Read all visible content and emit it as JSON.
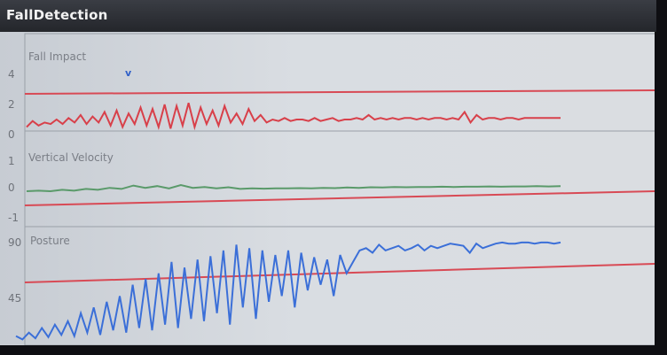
{
  "app": {
    "title": "FallDetection"
  },
  "colors": {
    "impact": "#d8404a",
    "velocity": "#5a9a6a",
    "posture": "#3b6fd8",
    "threshold": "#d84a55"
  },
  "panels": [
    {
      "key": "impact",
      "label": "Fall Impact",
      "ticks": [
        "4",
        "2",
        "0"
      ],
      "marker": "v"
    },
    {
      "key": "velocity",
      "label": "Vertical Velocity",
      "ticks": [
        "1",
        "0",
        "-1"
      ]
    },
    {
      "key": "posture",
      "label": "Posture",
      "ticks": [
        "90",
        "45"
      ]
    }
  ],
  "chart_data": [
    {
      "type": "line",
      "title": "Fall Impact",
      "ylim": [
        0,
        4
      ],
      "threshold": 2.4,
      "series": [
        {
          "name": "Fall Impact",
          "values": [
            0.5,
            0.9,
            0.6,
            0.8,
            0.7,
            1.0,
            0.7,
            1.1,
            0.8,
            1.3,
            0.7,
            1.2,
            0.8,
            1.5,
            0.6,
            1.6,
            0.5,
            1.4,
            0.7,
            1.8,
            0.6,
            1.7,
            0.5,
            2.0,
            0.4,
            1.9,
            0.6,
            2.1,
            0.5,
            1.8,
            0.7,
            1.6,
            0.6,
            1.9,
            0.8,
            1.4,
            0.7,
            1.7,
            0.9,
            1.3,
            0.8,
            1.0,
            0.9,
            1.1,
            0.9,
            1.0,
            1.0,
            0.9,
            1.1,
            0.9,
            1.0,
            1.1,
            0.9,
            1.0,
            1.0,
            1.1,
            1.0,
            1.3,
            1.0,
            1.1,
            1.0,
            1.1,
            1.0,
            1.1,
            1.1,
            1.0,
            1.1,
            1.0,
            1.1,
            1.1,
            1.0,
            1.1,
            1.0,
            1.5,
            0.8,
            1.3,
            1.0,
            1.1,
            1.1,
            1.0,
            1.1,
            1.1,
            1.0,
            1.1,
            1.1,
            1.1,
            1.1,
            1.1,
            1.1,
            1.1
          ]
        }
      ]
    },
    {
      "type": "line",
      "title": "Vertical Velocity",
      "ylim": [
        -1,
        1
      ],
      "threshold": -0.4,
      "series": [
        {
          "name": "Vertical Velocity",
          "values": [
            0.0,
            0.02,
            0.0,
            0.05,
            0.02,
            0.08,
            0.05,
            0.12,
            0.08,
            0.2,
            0.12,
            0.18,
            0.1,
            0.22,
            0.12,
            0.15,
            0.1,
            0.14,
            0.08,
            0.1,
            0.09,
            0.1,
            0.1,
            0.11,
            0.1,
            0.12,
            0.11,
            0.13,
            0.12,
            0.14,
            0.13,
            0.15,
            0.14,
            0.15,
            0.15,
            0.16,
            0.15,
            0.16,
            0.16,
            0.17,
            0.16,
            0.17,
            0.17,
            0.18,
            0.17,
            0.18
          ]
        }
      ]
    },
    {
      "type": "line",
      "title": "Posture",
      "ylim": [
        0,
        90
      ],
      "threshold": 55,
      "series": [
        {
          "name": "Posture",
          "values": [
            5,
            2,
            8,
            3,
            12,
            4,
            15,
            6,
            18,
            5,
            25,
            8,
            30,
            6,
            35,
            10,
            40,
            8,
            50,
            12,
            55,
            10,
            60,
            15,
            70,
            12,
            65,
            20,
            72,
            18,
            75,
            25,
            80,
            15,
            85,
            30,
            82,
            20,
            80,
            35,
            76,
            40,
            80,
            30,
            78,
            45,
            74,
            50,
            72,
            40,
            76,
            60,
            70,
            80,
            82,
            78,
            85,
            80,
            82,
            84,
            80,
            82,
            85,
            80,
            84,
            82,
            84,
            86,
            85,
            84,
            78,
            86,
            82,
            84,
            86,
            87,
            86,
            86,
            87,
            87,
            86,
            87,
            87,
            86,
            87
          ]
        }
      ]
    }
  ]
}
